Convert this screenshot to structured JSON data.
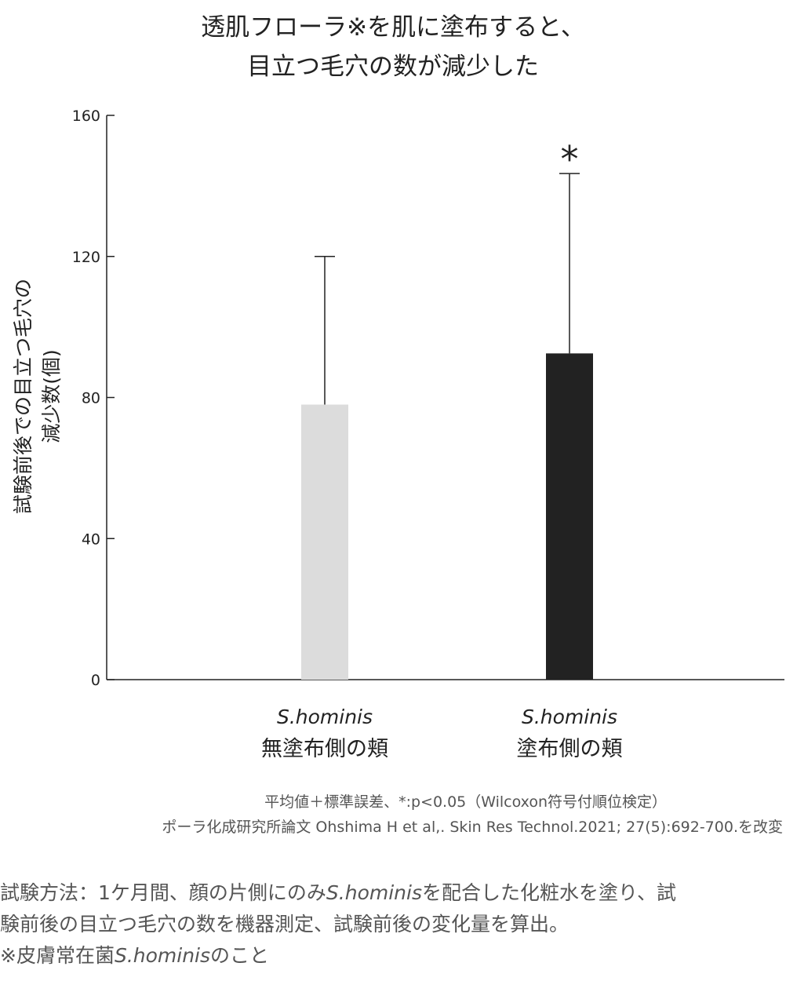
{
  "title": {
    "line1": "透肌フローラ※を肌に塗布すると、",
    "line2": "目立つ毛穴の数が減少した"
  },
  "chart_data": {
    "type": "bar",
    "ylabel_line1": "試験前後での目立つ毛穴の",
    "ylabel_line2": "減少数(個)",
    "ylim": [
      0,
      160
    ],
    "yticks": [
      0,
      40,
      80,
      120,
      160
    ],
    "categories": [
      {
        "en": "S.hominis",
        "ja": "無塗布側の頬"
      },
      {
        "en": "S.hominis",
        "ja": "塗布側の頬"
      }
    ],
    "values": [
      78,
      92.5
    ],
    "error_upper": [
      120,
      143.5
    ],
    "significance": [
      "",
      "*"
    ],
    "bar_colors": [
      "#dcdcdc",
      "#222222"
    ],
    "grid": false
  },
  "notes": {
    "line1": "平均値＋標準誤差、*:p<0.05（Wilcoxon符号付順位検定）",
    "line2": "ポーラ化成研究所論文 Ohshima H et al,. Skin Res Technol.2021; 27(5):692-700.を改変"
  },
  "method": {
    "line1_a": "試験方法：1ケ月間、顔の片側にのみ",
    "line1_em": "S.hominis",
    "line1_b": "を配合した化粧水を塗り、試",
    "line2": "験前後の目立つ毛穴の数を機器測定、試験前後の変化量を算出。",
    "line3_a": "※皮膚常在菌",
    "line3_em": "S.hominis",
    "line3_b": "のこと"
  }
}
